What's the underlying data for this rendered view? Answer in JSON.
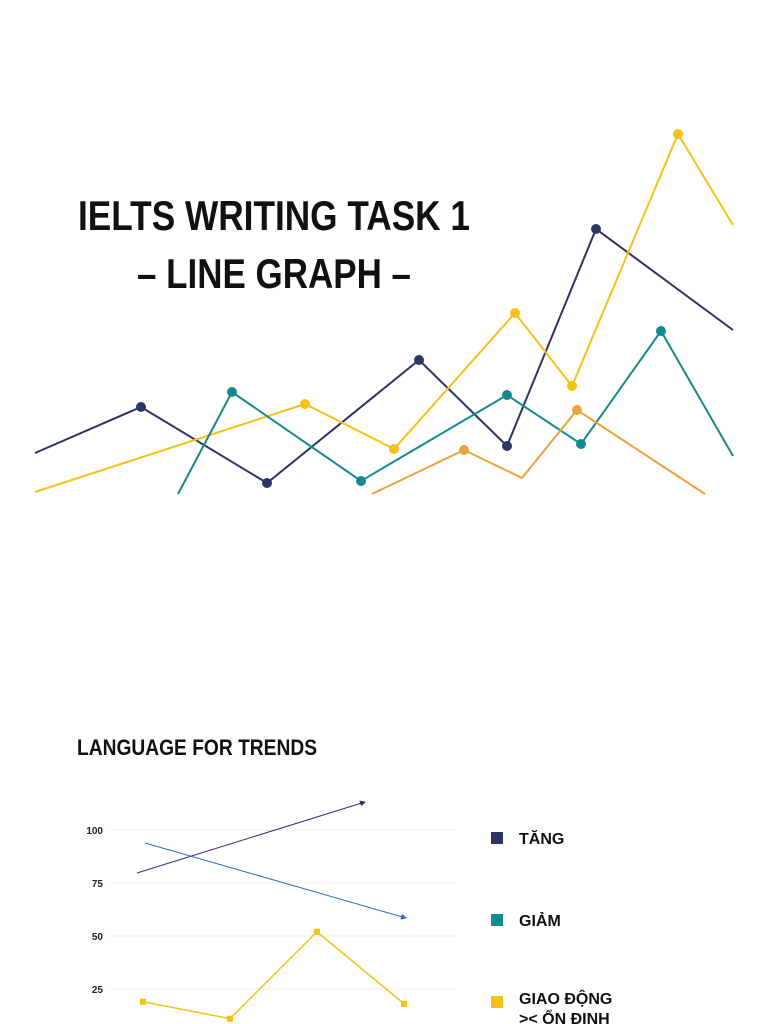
{
  "slide1": {
    "title_lines": [
      "IELTS WRITING TASK 1",
      "– LINE GRAPH –"
    ]
  },
  "slide2": {
    "heading": "LANGUAGE FOR TRENDS",
    "chart_data": {
      "type": "line",
      "categories": [
        null,
        null,
        null,
        null
      ],
      "series": [
        {
          "color": "#f5c218",
          "values": [
            19,
            11,
            52,
            18
          ]
        }
      ],
      "ylim": [
        0,
        100
      ],
      "yticks": [
        25,
        50,
        75,
        100
      ],
      "grid": true
    },
    "legend": [
      {
        "label": "TĂNG",
        "color": "#2c3563"
      },
      {
        "label": "GIẢM",
        "color": "#158a8c"
      },
      {
        "label_lines": [
          "GIAO ĐỘNG",
          ">< ỔN ĐỊNH"
        ],
        "color": "#f5c218"
      }
    ]
  }
}
